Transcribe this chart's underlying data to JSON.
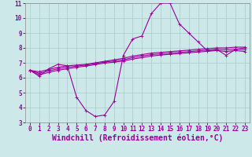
{
  "xlabel": "Windchill (Refroidissement éolien,°C)",
  "bg_color": "#cce8e8",
  "grid_color": "#aacccc",
  "line_color": "#990099",
  "x_values": [
    0,
    1,
    2,
    3,
    4,
    5,
    6,
    7,
    8,
    9,
    10,
    11,
    12,
    13,
    14,
    15,
    16,
    17,
    18,
    19,
    20,
    21,
    22,
    23
  ],
  "main_curve": [
    6.5,
    6.1,
    6.6,
    6.9,
    6.8,
    4.7,
    3.8,
    3.4,
    3.5,
    4.4,
    7.5,
    8.6,
    8.8,
    10.3,
    11.0,
    11.0,
    9.6,
    9.0,
    8.4,
    7.8,
    7.9,
    7.5,
    7.9,
    8.0
  ],
  "upper_line": [
    6.5,
    6.4,
    6.55,
    6.7,
    6.8,
    6.85,
    6.9,
    7.0,
    7.1,
    7.2,
    7.3,
    7.45,
    7.55,
    7.65,
    7.7,
    7.75,
    7.8,
    7.85,
    7.9,
    7.95,
    8.0,
    8.0,
    8.05,
    8.05
  ],
  "mid_line": [
    6.5,
    6.3,
    6.45,
    6.6,
    6.7,
    6.78,
    6.85,
    6.95,
    7.05,
    7.12,
    7.2,
    7.35,
    7.45,
    7.55,
    7.6,
    7.65,
    7.7,
    7.75,
    7.8,
    7.85,
    7.9,
    7.88,
    7.92,
    7.88
  ],
  "lower_line": [
    6.5,
    6.2,
    6.35,
    6.5,
    6.6,
    6.7,
    6.78,
    6.88,
    6.98,
    7.04,
    7.12,
    7.25,
    7.35,
    7.45,
    7.52,
    7.57,
    7.62,
    7.67,
    7.72,
    7.77,
    7.82,
    7.76,
    7.82,
    7.76
  ],
  "ylim": [
    3,
    11
  ],
  "yticks": [
    3,
    4,
    5,
    6,
    7,
    8,
    9,
    10,
    11
  ],
  "xticks": [
    0,
    1,
    2,
    3,
    4,
    5,
    6,
    7,
    8,
    9,
    10,
    11,
    12,
    13,
    14,
    15,
    16,
    17,
    18,
    19,
    20,
    21,
    22,
    23
  ],
  "tick_fontsize": 5.5,
  "xlabel_fontsize": 7.0,
  "linewidth": 0.8,
  "markersize": 2.5
}
